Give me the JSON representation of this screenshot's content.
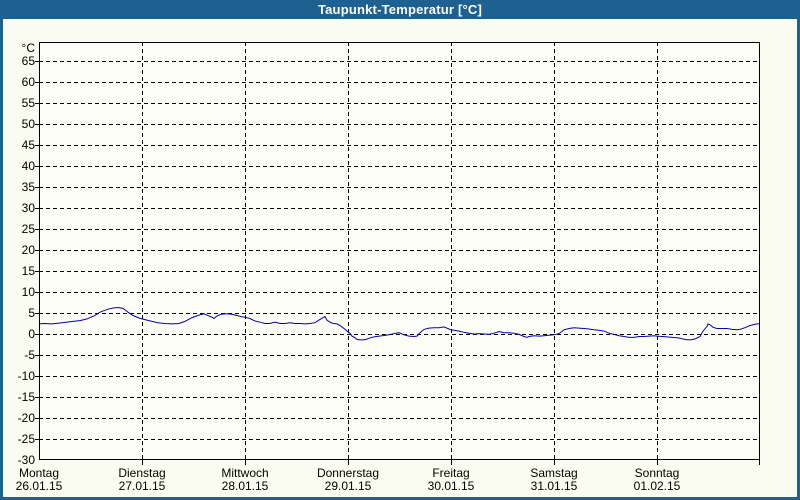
{
  "window": {
    "title": "Taupunkt-Temperatur [°C]"
  },
  "colors": {
    "titlebar_bg": "#1e6191",
    "titlebar_text": "#ffffff",
    "window_border": "#1e6191",
    "window_bg": "#fafcf1",
    "plot_bg": "#fdfdf7",
    "grid_line": "#000000",
    "label_text": "#000000",
    "series_line": "#0000b8"
  },
  "y_axis": {
    "unit_label": "°C",
    "tick_labels": [
      "65",
      "60",
      "55",
      "50",
      "45",
      "40",
      "35",
      "30",
      "25",
      "20",
      "15",
      "10",
      "5",
      "0",
      "-5",
      "-10",
      "-15",
      "-20",
      "-25"
    ],
    "bottom_label": "-30",
    "step": 5
  },
  "x_axis": {
    "days": [
      {
        "name": "Montag",
        "date": "26.01.15"
      },
      {
        "name": "Dienstag",
        "date": "27.01.15"
      },
      {
        "name": "Mittwoch",
        "date": "28.01.15"
      },
      {
        "name": "Donnerstag",
        "date": "29.01.15"
      },
      {
        "name": "Freitag",
        "date": "30.01.15"
      },
      {
        "name": "Samstag",
        "date": "31.01.15"
      },
      {
        "name": "Sonntag",
        "date": "01.02.15"
      }
    ]
  },
  "chart_data": {
    "type": "line",
    "title": "Taupunkt-Temperatur [°C]",
    "ylabel": "°C",
    "ylim": [
      -30,
      70
    ],
    "y_tick_step": 5,
    "x_unit": "days since Montag 26.01.15 00:00",
    "x_range_days": [
      0,
      7
    ],
    "grid": "dashed, horizontal every 5°C, vertical at each day boundary",
    "legend": "none",
    "series": [
      {
        "name": "Taupunkt-Temperatur",
        "color": "#0000b8",
        "points": [
          [
            0.0,
            2.4
          ],
          [
            0.058,
            2.5
          ],
          [
            0.126,
            2.4
          ],
          [
            0.194,
            2.6
          ],
          [
            0.262,
            2.8
          ],
          [
            0.33,
            3.0
          ],
          [
            0.398,
            3.2
          ],
          [
            0.466,
            3.6
          ],
          [
            0.534,
            4.3
          ],
          [
            0.602,
            5.3
          ],
          [
            0.67,
            5.9
          ],
          [
            0.718,
            6.2
          ],
          [
            0.767,
            6.3
          ],
          [
            0.816,
            6.1
          ],
          [
            0.864,
            5.2
          ],
          [
            0.913,
            4.4
          ],
          [
            0.971,
            3.8
          ],
          [
            1.0,
            3.6
          ],
          [
            1.049,
            3.3
          ],
          [
            1.097,
            3.0
          ],
          [
            1.155,
            2.7
          ],
          [
            1.223,
            2.5
          ],
          [
            1.291,
            2.4
          ],
          [
            1.359,
            2.5
          ],
          [
            1.417,
            3.0
          ],
          [
            1.485,
            3.9
          ],
          [
            1.553,
            4.5
          ],
          [
            1.602,
            4.8
          ],
          [
            1.65,
            4.3
          ],
          [
            1.68,
            4.0
          ],
          [
            1.699,
            3.7
          ],
          [
            1.728,
            4.3
          ],
          [
            1.767,
            4.7
          ],
          [
            1.825,
            4.8
          ],
          [
            1.874,
            4.7
          ],
          [
            1.922,
            4.4
          ],
          [
            1.971,
            4.1
          ],
          [
            2.0,
            4.0
          ],
          [
            2.049,
            3.7
          ],
          [
            2.097,
            3.1
          ],
          [
            2.146,
            2.8
          ],
          [
            2.194,
            2.5
          ],
          [
            2.243,
            2.5
          ],
          [
            2.291,
            2.8
          ],
          [
            2.34,
            2.5
          ],
          [
            2.388,
            2.5
          ],
          [
            2.437,
            2.7
          ],
          [
            2.485,
            2.5
          ],
          [
            2.534,
            2.5
          ],
          [
            2.583,
            2.4
          ],
          [
            2.631,
            2.5
          ],
          [
            2.68,
            2.7
          ],
          [
            2.718,
            3.3
          ],
          [
            2.777,
            4.2
          ],
          [
            2.796,
            3.3
          ],
          [
            2.825,
            2.8
          ],
          [
            2.854,
            2.5
          ],
          [
            2.893,
            2.4
          ],
          [
            2.922,
            2.0
          ],
          [
            2.961,
            1.3
          ],
          [
            3.0,
            0.5
          ],
          [
            3.019,
            0.15
          ],
          [
            3.039,
            -0.5
          ],
          [
            3.068,
            -0.9
          ],
          [
            3.087,
            -1.3
          ],
          [
            3.117,
            -1.4
          ],
          [
            3.146,
            -1.4
          ],
          [
            3.175,
            -1.3
          ],
          [
            3.204,
            -1.0
          ],
          [
            3.252,
            -0.7
          ],
          [
            3.301,
            -0.5
          ],
          [
            3.35,
            -0.35
          ],
          [
            3.398,
            -0.2
          ],
          [
            3.447,
            0.1
          ],
          [
            3.495,
            0.3
          ],
          [
            3.544,
            -0.2
          ],
          [
            3.592,
            -0.5
          ],
          [
            3.641,
            -0.6
          ],
          [
            3.67,
            -0.5
          ],
          [
            3.689,
            0.1
          ],
          [
            3.738,
            1.1
          ],
          [
            3.786,
            1.4
          ],
          [
            3.835,
            1.5
          ],
          [
            3.883,
            1.5
          ],
          [
            3.932,
            1.7
          ],
          [
            3.981,
            1.2
          ],
          [
            4.0,
            1.0
          ],
          [
            4.029,
            0.9
          ],
          [
            4.078,
            0.7
          ],
          [
            4.126,
            0.4
          ],
          [
            4.175,
            0.2
          ],
          [
            4.223,
            0.0
          ],
          [
            4.272,
            0.1
          ],
          [
            4.32,
            0.0
          ],
          [
            4.369,
            -0.1
          ],
          [
            4.417,
            0.2
          ],
          [
            4.466,
            0.6
          ],
          [
            4.515,
            0.3
          ],
          [
            4.563,
            0.3
          ],
          [
            4.612,
            0.2
          ],
          [
            4.66,
            -0.1
          ],
          [
            4.709,
            -0.6
          ],
          [
            4.738,
            -0.8
          ],
          [
            4.757,
            -0.6
          ],
          [
            4.806,
            -0.4
          ],
          [
            4.854,
            -0.5
          ],
          [
            4.903,
            -0.4
          ],
          [
            4.951,
            -0.3
          ],
          [
            5.0,
            -0.2
          ],
          [
            5.049,
            0.1
          ],
          [
            5.097,
            1.0
          ],
          [
            5.146,
            1.3
          ],
          [
            5.194,
            1.5
          ],
          [
            5.243,
            1.4
          ],
          [
            5.291,
            1.3
          ],
          [
            5.34,
            1.2
          ],
          [
            5.388,
            1.0
          ],
          [
            5.437,
            0.9
          ],
          [
            5.485,
            0.7
          ],
          [
            5.534,
            0.2
          ],
          [
            5.583,
            -0.1
          ],
          [
            5.631,
            -0.4
          ],
          [
            5.68,
            -0.6
          ],
          [
            5.728,
            -0.8
          ],
          [
            5.777,
            -0.8
          ],
          [
            5.825,
            -0.6
          ],
          [
            5.874,
            -0.6
          ],
          [
            5.922,
            -0.5
          ],
          [
            5.971,
            -0.4
          ],
          [
            6.0,
            -0.5
          ],
          [
            6.049,
            -0.6
          ],
          [
            6.097,
            -0.7
          ],
          [
            6.146,
            -0.8
          ],
          [
            6.194,
            -0.9
          ],
          [
            6.223,
            -1.0
          ],
          [
            6.272,
            -1.3
          ],
          [
            6.32,
            -1.4
          ],
          [
            6.369,
            -1.2
          ],
          [
            6.417,
            -0.6
          ],
          [
            6.447,
            0.7
          ],
          [
            6.485,
            1.8
          ],
          [
            6.495,
            2.4
          ],
          [
            6.515,
            2.2
          ],
          [
            6.544,
            1.6
          ],
          [
            6.583,
            1.3
          ],
          [
            6.631,
            1.3
          ],
          [
            6.68,
            1.3
          ],
          [
            6.728,
            1.1
          ],
          [
            6.777,
            1.0
          ],
          [
            6.806,
            1.1
          ],
          [
            6.854,
            1.5
          ],
          [
            6.903,
            2.0
          ],
          [
            6.951,
            2.3
          ],
          [
            7.0,
            2.5
          ]
        ]
      }
    ]
  }
}
